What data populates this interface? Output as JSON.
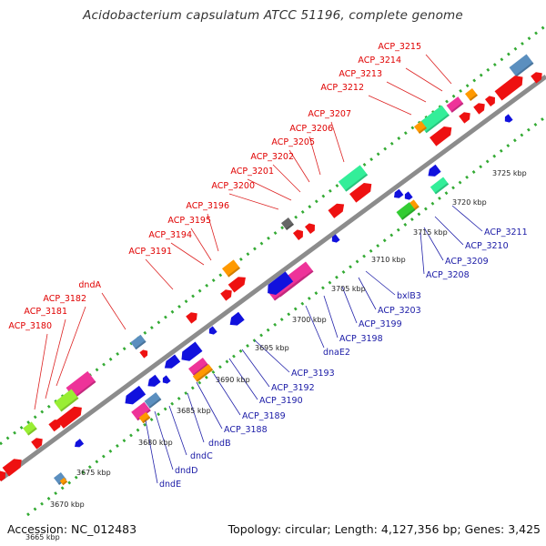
{
  "title": "Acidobacterium capsulatum ATCC 51196, complete genome",
  "footer": {
    "accession": "Accession: NC_012483",
    "summary": "Topology: circular; Length: 4,127,356 bp; Genes: 3,425"
  },
  "colors": {
    "forward_gene": "#ee1111",
    "reverse_gene": "#1111dd",
    "backbone": "#8c8c8c",
    "forward_dots": "#33aa33",
    "reverse_dots": "#33aa33",
    "top_label": "#e00000",
    "bottom_label": "#1a1aa6"
  },
  "scale_labels": [
    "3665 kbp",
    "3670 kbp",
    "3675 kbp",
    "3680 kbp",
    "3685 kbp",
    "3690 kbp",
    "3695 kbp",
    "3700 kbp",
    "3705 kbp",
    "3710 kbp",
    "3715 kbp",
    "3720 kbp",
    "3725 kbp"
  ],
  "top_labels": [
    "ACP_3215",
    "ACP_3214",
    "ACP_3213",
    "ACP_3212",
    "ACP_3207",
    "ACP_3206",
    "ACP_3205",
    "ACP_3202",
    "ACP_3201",
    "ACP_3200",
    "ACP_3196",
    "ACP_3195",
    "ACP_3194",
    "ACP_3191",
    "dndA",
    "ACP_3182",
    "ACP_3181",
    "ACP_3180"
  ],
  "bottom_labels": [
    "ACP_3211",
    "ACP_3210",
    "ACP_3209",
    "ACP_3208",
    "bxlB3",
    "ACP_3203",
    "ACP_3199",
    "ACP_3198",
    "dnaE2",
    "ACP_3193",
    "ACP_3192",
    "ACP_3190",
    "ACP_3189",
    "ACP_3188",
    "dndB",
    "dndC",
    "dndD",
    "dndE"
  ]
}
